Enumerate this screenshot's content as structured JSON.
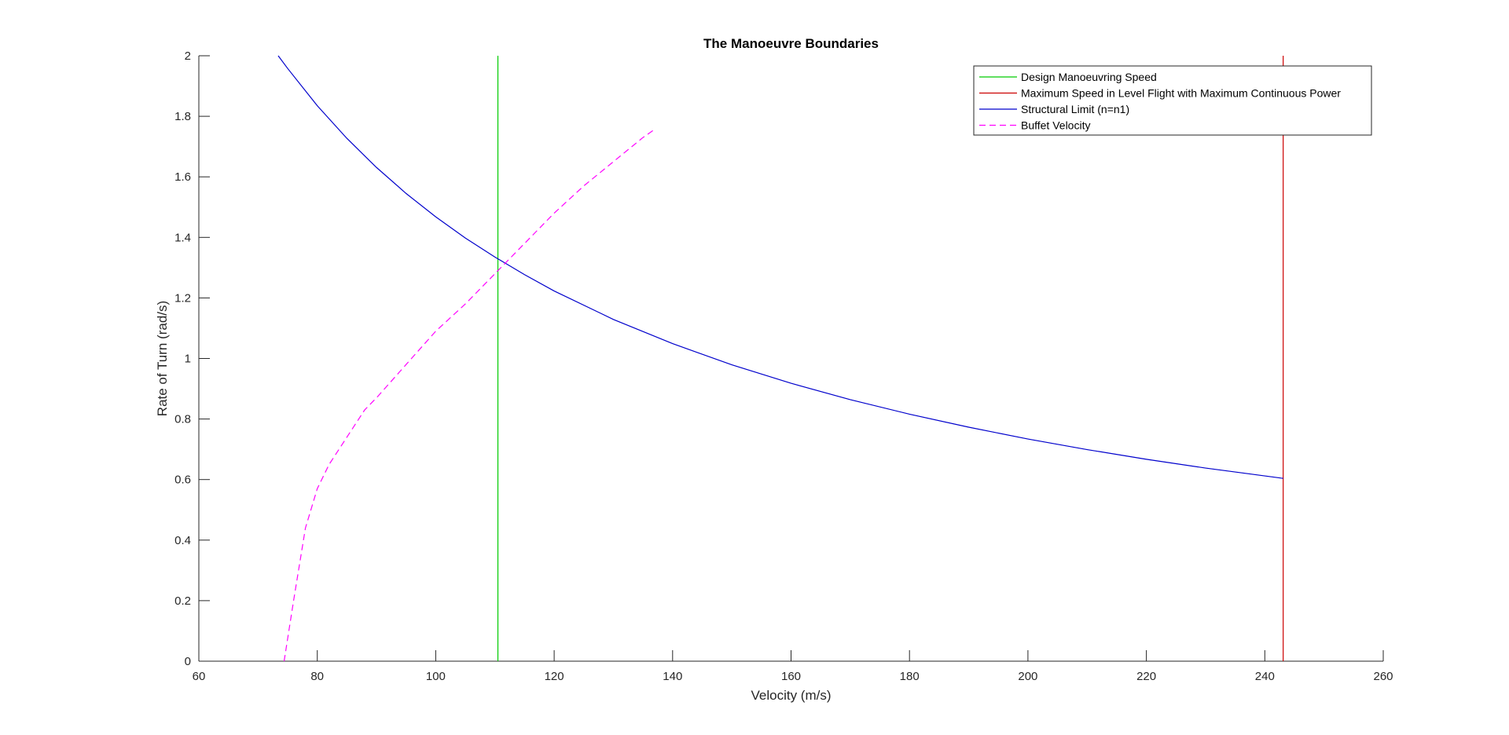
{
  "chart_data": {
    "type": "line",
    "title": "The Manoeuvre Boundaries",
    "xlabel": "Velocity (m/s)",
    "ylabel": "Rate of Turn (rad/s)",
    "xlim": [
      60,
      260
    ],
    "ylim": [
      0,
      2
    ],
    "xticks": [
      60,
      80,
      100,
      120,
      140,
      160,
      180,
      200,
      220,
      240,
      260
    ],
    "yticks": [
      0,
      0.2,
      0.4,
      0.6,
      0.8,
      1,
      1.2,
      1.4,
      1.6,
      1.8,
      2
    ],
    "ytick_labels": [
      "0",
      "0.2",
      "0.4",
      "0.6",
      "0.8",
      "1",
      "1.2",
      "1.4",
      "1.6",
      "1.8",
      "2"
    ],
    "grid": false,
    "legend_position": "top-right",
    "series": [
      {
        "name": "Design Manoeuvring Speed",
        "color": "#00cc00",
        "style": "solid",
        "kind": "vline",
        "x": [
          110.5,
          110.5
        ],
        "y": [
          0,
          2
        ]
      },
      {
        "name": "Maximum Speed in Level Flight with Maximum Continuous Power",
        "color": "#cc0000",
        "style": "solid",
        "kind": "vline",
        "x": [
          243.1,
          243.1
        ],
        "y": [
          0,
          2
        ]
      },
      {
        "name": "Structural Limit (n=n1)",
        "color": "#0000cc",
        "style": "solid",
        "kind": "line",
        "x": [
          73.4,
          75,
          80,
          85,
          90,
          95,
          100,
          105,
          110,
          115,
          120,
          130,
          140,
          150,
          160,
          170,
          180,
          190,
          200,
          210,
          220,
          230,
          240,
          243.1
        ],
        "y": [
          2.0,
          1.958,
          1.835,
          1.727,
          1.631,
          1.545,
          1.468,
          1.398,
          1.335,
          1.277,
          1.223,
          1.129,
          1.049,
          0.979,
          0.918,
          0.864,
          0.816,
          0.773,
          0.734,
          0.699,
          0.667,
          0.638,
          0.612,
          0.604
        ]
      },
      {
        "name": "Buffet Velocity",
        "color": "#ff00ff",
        "style": "dashed",
        "kind": "line",
        "x": [
          74.4,
          76,
          77.5,
          78,
          80,
          82,
          84,
          86,
          88,
          90,
          95,
          100,
          105,
          110,
          115,
          120,
          125,
          130,
          135,
          137.2
        ],
        "y": [
          0,
          0.2,
          0.38,
          0.44,
          0.57,
          0.65,
          0.71,
          0.77,
          0.83,
          0.87,
          0.98,
          1.09,
          1.18,
          1.28,
          1.38,
          1.48,
          1.57,
          1.65,
          1.73,
          1.76
        ]
      }
    ]
  }
}
